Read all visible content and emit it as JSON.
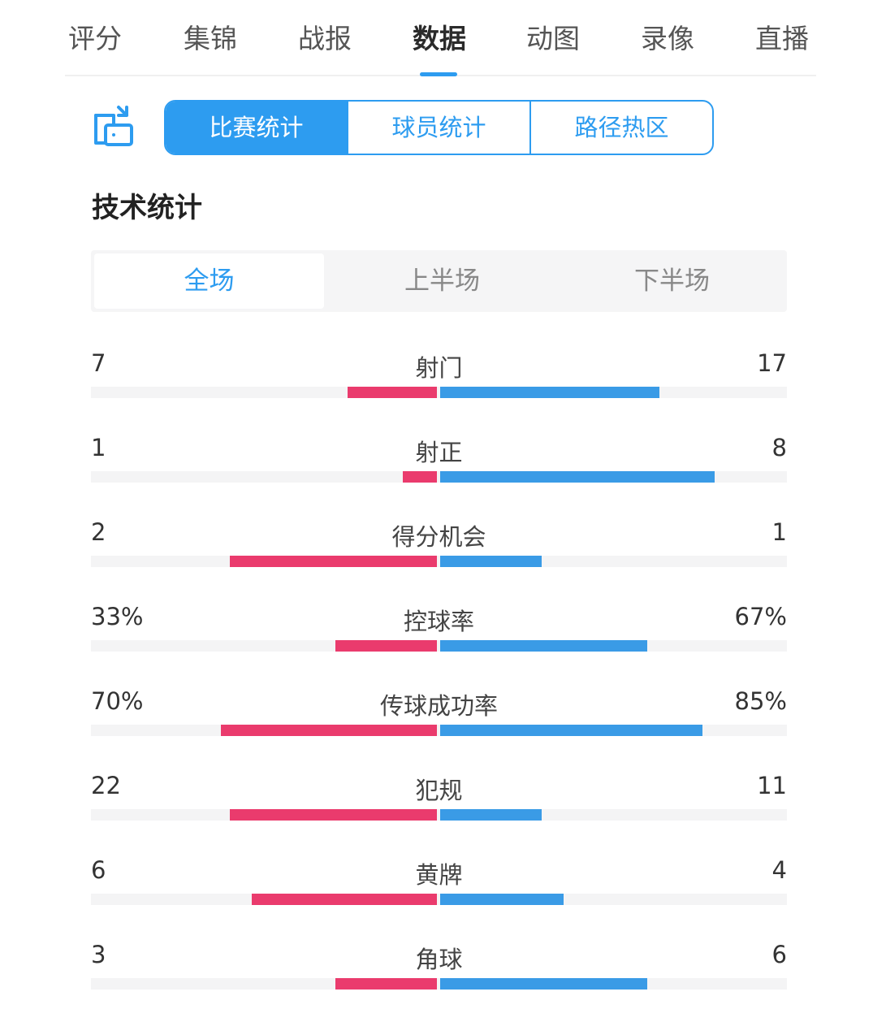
{
  "top_tabs": [
    {
      "label": "评分"
    },
    {
      "label": "集锦"
    },
    {
      "label": "战报"
    },
    {
      "label": "数据",
      "active": true
    },
    {
      "label": "动图"
    },
    {
      "label": "录像"
    },
    {
      "label": "直播"
    }
  ],
  "segment": [
    {
      "label": "比赛统计",
      "active": true
    },
    {
      "label": "球员统计"
    },
    {
      "label": "路径热区"
    }
  ],
  "section_title": "技术统计",
  "period_tabs": [
    {
      "label": "全场",
      "active": true
    },
    {
      "label": "上半场"
    },
    {
      "label": "下半场"
    }
  ],
  "colors": {
    "accent": "#2d9cf0",
    "left_team": "#ea3b6d",
    "right_team": "#3a9be6"
  },
  "stats": [
    {
      "label": "射门",
      "left": "7",
      "right": "17",
      "left_share": 0.29,
      "right_share": 0.71
    },
    {
      "label": "射正",
      "left": "1",
      "right": "8",
      "left_share": 0.11,
      "right_share": 0.89
    },
    {
      "label": "得分机会",
      "left": "2",
      "right": "1",
      "left_share": 0.67,
      "right_share": 0.33
    },
    {
      "label": "控球率",
      "left": "33%",
      "right": "67%",
      "left_share": 0.33,
      "right_share": 0.67
    },
    {
      "label": "传球成功率",
      "left": "70%",
      "right": "85%",
      "left_share": 0.7,
      "right_share": 0.85
    },
    {
      "label": "犯规",
      "left": "22",
      "right": "11",
      "left_share": 0.67,
      "right_share": 0.33
    },
    {
      "label": "黄牌",
      "left": "6",
      "right": "4",
      "left_share": 0.6,
      "right_share": 0.4
    },
    {
      "label": "角球",
      "left": "3",
      "right": "6",
      "left_share": 0.33,
      "right_share": 0.67
    }
  ]
}
